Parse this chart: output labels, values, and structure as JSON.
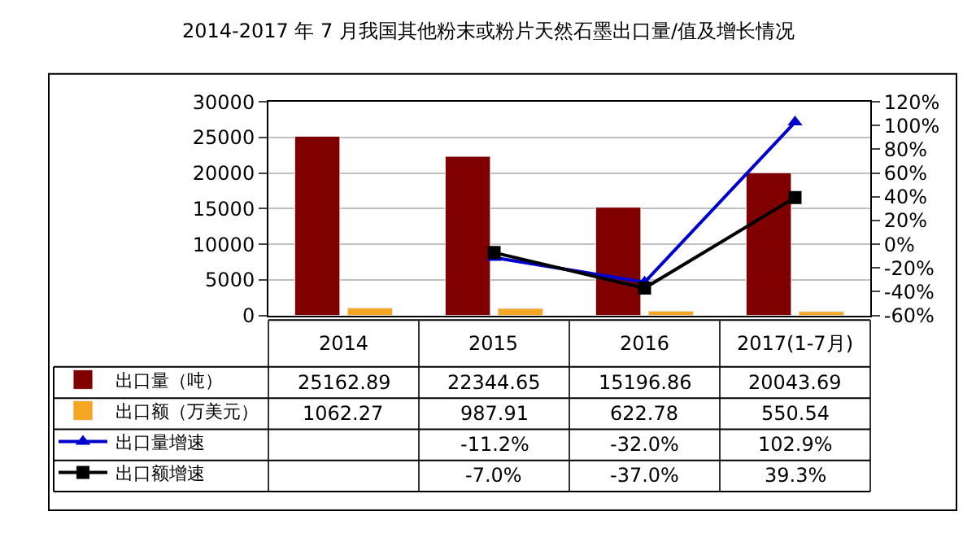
{
  "chart_data": {
    "type": "bar",
    "title": "2014-2017 年 7 月我国其他粉末或粉片天然石墨出口量/值及增长情况",
    "categories": [
      "2014",
      "2015",
      "2016",
      "2017(1-7月)"
    ],
    "series": [
      {
        "name": "出口量（吨）",
        "color": "#800000",
        "values": [
          25162.89,
          22344.65,
          15196.86,
          20043.69
        ],
        "value_labels": [
          "25162.89",
          "22344.65",
          "15196.86",
          "20043.69"
        ]
      },
      {
        "name": "出口额（万美元）",
        "color": "#f5a623",
        "values": [
          1062.27,
          987.91,
          622.78,
          550.54
        ],
        "value_labels": [
          "1062.27",
          "987.91",
          "622.78",
          "550.54"
        ]
      },
      {
        "name": "出口量增速",
        "type": "line",
        "axis": "y2",
        "marker": "triangle",
        "color": "#0000cc",
        "values": [
          null,
          -11.2,
          -32.0,
          102.9
        ],
        "value_labels": [
          null,
          "-11.2%",
          "-32.0%",
          "102.9%"
        ]
      },
      {
        "name": "出口额增速",
        "type": "line",
        "axis": "y2",
        "marker": "square",
        "color": "#000000",
        "values": [
          null,
          -7.0,
          -37.0,
          39.3
        ],
        "value_labels": [
          null,
          "-7.0%",
          "-37.0%",
          "39.3%"
        ]
      }
    ],
    "ylim": [
      0,
      30000
    ],
    "yticks": [
      0,
      5000,
      10000,
      15000,
      20000,
      25000,
      30000
    ],
    "y2lim": [
      -60,
      120
    ],
    "y2ticks": [
      {
        "value": -60,
        "label": "-60%"
      },
      {
        "value": -40,
        "label": "-40%"
      },
      {
        "value": -20,
        "label": "-20%"
      },
      {
        "value": 0,
        "label": "0%"
      },
      {
        "value": 20,
        "label": "20%"
      },
      {
        "value": 40,
        "label": "40%"
      },
      {
        "value": 60,
        "label": "60%"
      },
      {
        "value": 80,
        "label": "80%"
      },
      {
        "value": 100,
        "label": "100%"
      },
      {
        "value": 120,
        "label": "120%"
      }
    ],
    "grid": "y",
    "legend": "bottom left"
  }
}
